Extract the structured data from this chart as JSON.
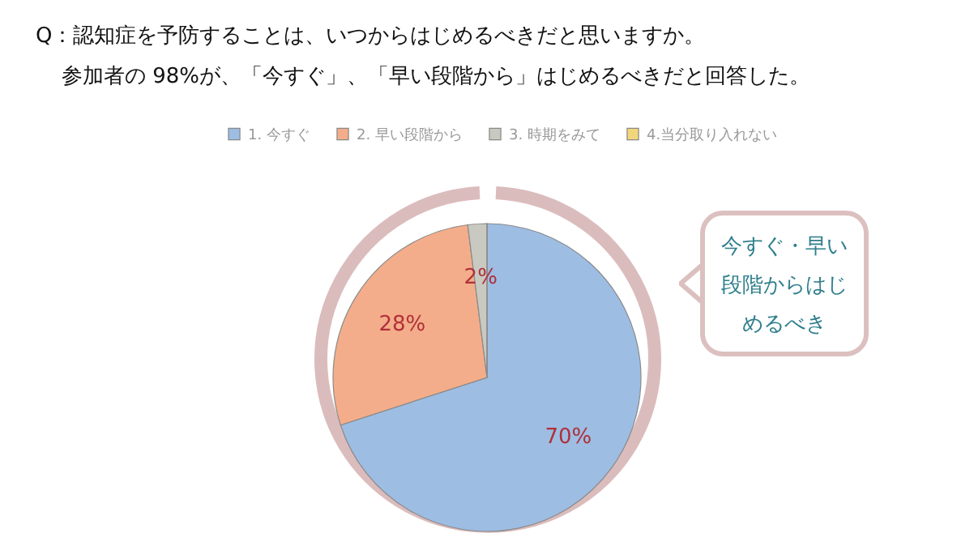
{
  "chart_data": {
    "type": "pie",
    "title": "Q：認知症を予防することは、いつからはじめるべきだと思いますか。",
    "subtitle": "参加者の 98%が、「今すぐ」、「早い段階から」はじめるべきだと回答した。",
    "categories": [
      "1. 今すぐ",
      "2. 早い段階から",
      "3. 時期をみて",
      "4.当分取り入れない"
    ],
    "values": [
      70,
      28,
      2,
      0
    ],
    "colors": [
      "#9dbde3",
      "#f4ad8a",
      "#c9c9c1",
      "#f3d67c"
    ],
    "value_labels": [
      "70%",
      "28%",
      "2%",
      null
    ],
    "legend": "top",
    "annotations": [
      "今すぐ・早い段階からはじめるべき"
    ]
  }
}
